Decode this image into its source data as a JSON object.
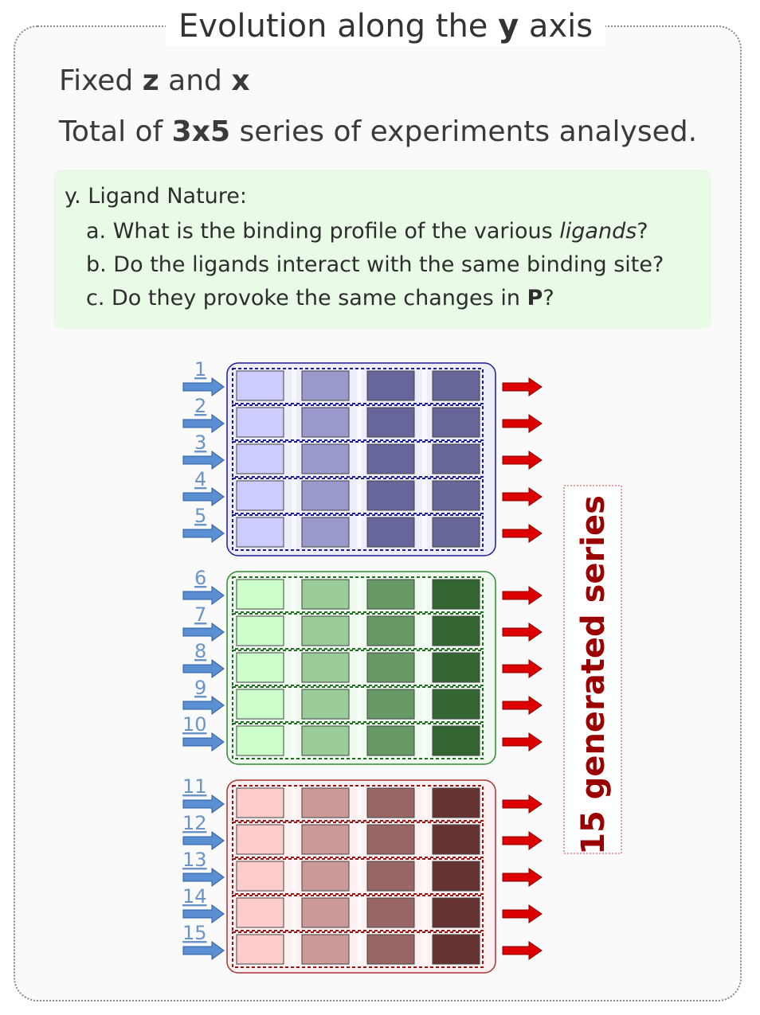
{
  "title": {
    "prefix": "Evolution along the ",
    "bold": "y",
    "suffix": " axis"
  },
  "fixed": {
    "prefix": "Fixed ",
    "z": "z",
    "mid": " and ",
    "x": "x"
  },
  "total": {
    "prefix": "Total of ",
    "bold": "3x5",
    "suffix": " series of experiments analysed."
  },
  "questions": {
    "heading": "y. Ligand Nature:",
    "a": {
      "prefix": "a. What is the binding profile of the various ",
      "italic": "ligands",
      "suffix": "?"
    },
    "b": "b. Do the ligands interact with the same binding site?",
    "c": {
      "prefix": "c. Do they provoke the same changes in ",
      "bold": "P",
      "suffix": "?"
    }
  },
  "series_labels": [
    "1",
    "2",
    "3",
    "4",
    "5",
    "6",
    "7",
    "8",
    "9",
    "10",
    "11",
    "12",
    "13",
    "14",
    "15"
  ],
  "groups": [
    {
      "name": "blue",
      "border": "#1a1aa0",
      "dash": "#1a1aa0",
      "panel": "#eeeefa",
      "cells": [
        "#ccccff",
        "#9999cc",
        "#66669a",
        "#666699"
      ]
    },
    {
      "name": "green",
      "border": "#2e8b2e",
      "dash": "#1f6b1f",
      "panel": "#eefaee",
      "cells": [
        "#ccffcc",
        "#99cc99",
        "#669966",
        "#336633"
      ]
    },
    {
      "name": "red",
      "border": "#b03030",
      "dash": "#a01010",
      "panel": "#fdf0f0",
      "cells": [
        "#ffcccc",
        "#cc9999",
        "#996666",
        "#663333"
      ]
    }
  ],
  "colors": {
    "in_arrow": "#5b8fd4",
    "out_arrow": "#dd0000",
    "label": "#6a94c8",
    "generated": "#9b0000"
  },
  "generated_label": "15 generated series"
}
